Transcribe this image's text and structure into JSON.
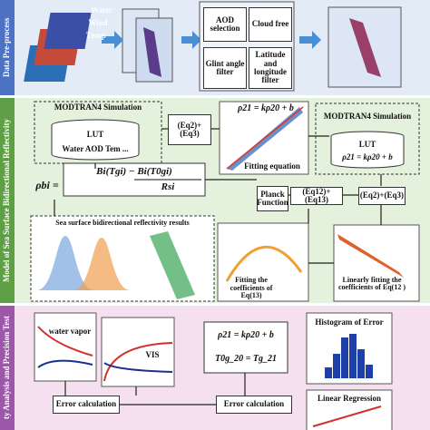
{
  "sections": {
    "pre_process": "Data Pre-process",
    "model": "Model of Sea Surface Bidirectional Reflectivity",
    "analysis": "ty Analysis and Precision Test"
  },
  "pre_process": {
    "inputs": [
      "Water",
      "Wind",
      "Temp"
    ],
    "filters": [
      "AOD selection",
      "Cloud free",
      "Glint angle filter",
      "Latitude and longitude filter"
    ]
  },
  "model": {
    "left_sim": {
      "title": "MODTRAN4 Simulation",
      "lut": "LUT",
      "params": "Water AOD Tem ..."
    },
    "eq23_top": "(Eq2)+ (Eq3)",
    "scatter_formula": "ρ21 = kρ20 + b",
    "scatter_caption": "Fitting equation",
    "right_sim": {
      "title": "MODTRAN4 Simulation",
      "lut": "LUT",
      "formula": "ρ21 = kρ20 + b"
    },
    "rho_bi": "ρbi =",
    "formula_num": "Bi(Tgi) − Bi(T0gi)",
    "formula_den": "Rsi",
    "planck": "Planck Function",
    "eq1213": "(Eq12)+(Eq13)",
    "eq23_bottom": "(Eq2)+(Eq3)",
    "results_title": "Sea surface bidirectional reflectivity results",
    "fit13": "Fitting the coefficients of Eq(13)",
    "fit12": "Linearly fitting the coefficients of Eq(12 )"
  },
  "analysis": {
    "water_vapor": "water vapor",
    "vis": "VIS",
    "formula1": "ρ21 = kρ20 + b",
    "formula2": "T0g_20 = Tg_21",
    "error_calc_1": "Error calculation",
    "error_calc_2": "Error calculation",
    "histogram": "Histogram of Error",
    "regression": "Linear Regression"
  }
}
